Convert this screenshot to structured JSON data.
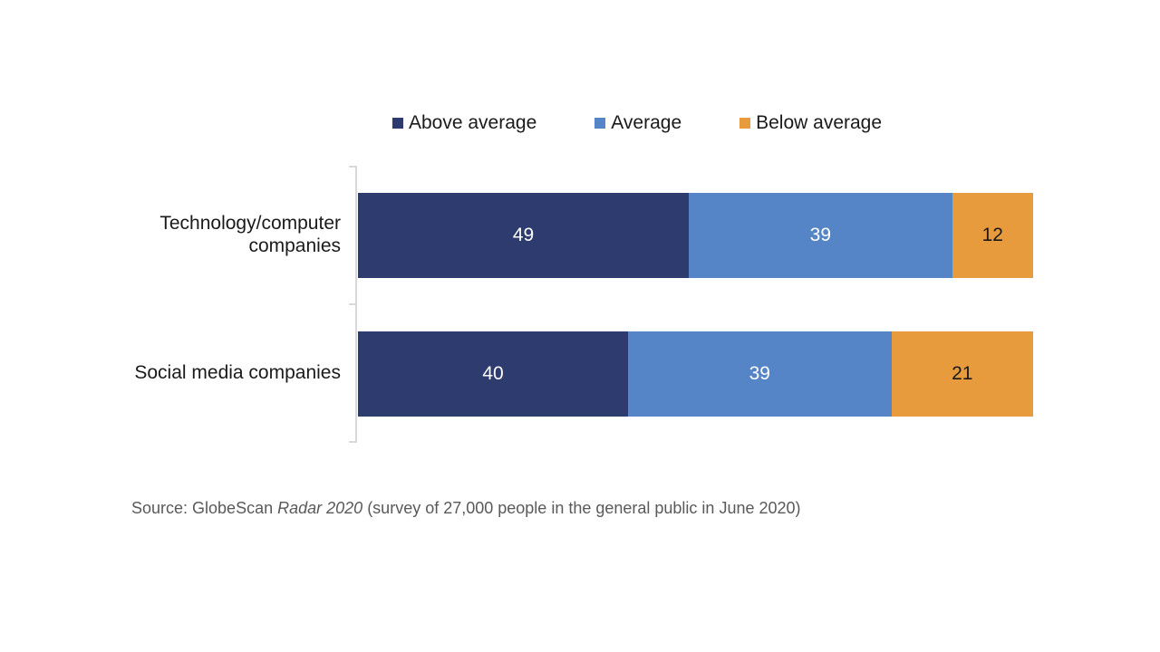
{
  "chart_data": {
    "type": "bar",
    "orientation": "horizontal-stacked",
    "title": "",
    "categories": [
      "Technology/computer\ncompanies",
      "Social media companies"
    ],
    "series": [
      {
        "name": "Above average",
        "color": "#2E3B6F",
        "label_color": "#FFFFFF",
        "values": [
          49,
          40
        ]
      },
      {
        "name": "Average",
        "color": "#5585C6",
        "label_color": "#FFFFFF",
        "values": [
          39,
          39
        ]
      },
      {
        "name": "Below average",
        "color": "#E89B3C",
        "label_color": "#1A1A1A",
        "values": [
          12,
          21
        ]
      }
    ],
    "x_total": 100,
    "xlim": [
      0,
      100
    ],
    "legend_position": "top",
    "gridlines": false,
    "data_labels": "inside-center",
    "axis_color": "#D9D9D9"
  },
  "source": {
    "prefix": "Source: GlobeScan ",
    "italic": "Radar 2020",
    "suffix": " (survey of 27,000 people in the general public in June 2020)",
    "color": "#595959"
  }
}
